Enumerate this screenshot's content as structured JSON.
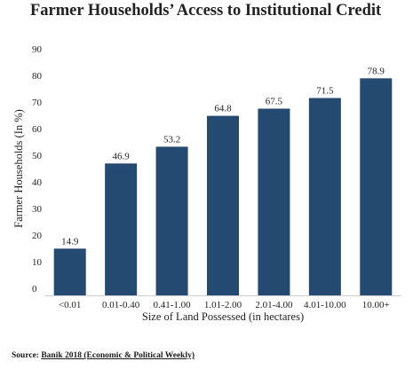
{
  "title": "Farmer Households’ Access to Institutional Credit",
  "source": {
    "label": "Source:",
    "text": "Banik 2018 (Economic & Political Weekly)"
  },
  "colors": {
    "bar": "#254a72",
    "axis": "#cfcfcf"
  },
  "chart_data": {
    "type": "bar",
    "title": "Farmer Households’ Access to Institutional Credit",
    "xlabel": "Size of Land Possessed (in hectares)",
    "ylabel": "Farmer Households (In %)",
    "categories": [
      "<0.01",
      "0.01-0.40",
      "0.41-1.00",
      "1.01-2.00",
      "2.01-4.00",
      "4.01-10.00",
      "10.00+"
    ],
    "values": [
      14.9,
      46.9,
      53.2,
      64.8,
      67.5,
      71.5,
      78.9
    ],
    "value_labels": [
      "14.9",
      "46.9",
      "53.2",
      "64.8",
      "67.5",
      "71.5",
      "78.9"
    ],
    "yticks": [
      "0",
      "10",
      "20",
      "30",
      "40",
      "50",
      "60",
      "70",
      "80",
      "90"
    ],
    "ylim": [
      0,
      90
    ],
    "grid": false,
    "legend": "none"
  }
}
